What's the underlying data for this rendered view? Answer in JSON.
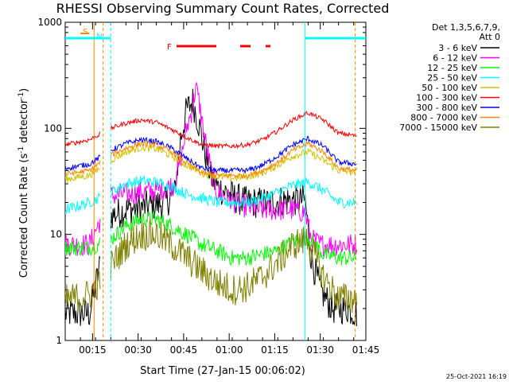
{
  "chart_data": {
    "type": "line",
    "title": "RHESSI Observing Summary Count Rates, Corrected",
    "xlabel": "Start Time (27-Jan-15 00:06:02)",
    "ylabel_main": "Corrected Count Rate (s",
    "ylabel_sup1": "-1",
    "ylabel_mid": " detector",
    "ylabel_sup2": "-1",
    "ylabel_end": ")",
    "x_unit": "minutes since 00:06:02",
    "xlim": [
      0,
      99
    ],
    "ylim": [
      1,
      1000
    ],
    "yscale": "log",
    "x_ticks": [
      {
        "x": 9,
        "label": "00:15"
      },
      {
        "x": 24,
        "label": "00:30"
      },
      {
        "x": 39,
        "label": "00:45"
      },
      {
        "x": 54,
        "label": "01:00"
      },
      {
        "x": 69,
        "label": "01:15"
      },
      {
        "x": 84,
        "label": "01:30"
      },
      {
        "x": 99,
        "label": "01:45"
      }
    ],
    "y_ticks": [
      {
        "y": 1,
        "label": "1"
      },
      {
        "y": 10,
        "label": "10"
      },
      {
        "y": 100,
        "label": "100"
      },
      {
        "y": 1000,
        "label": "1000"
      }
    ],
    "legend": {
      "placement": "right",
      "header1": "Det 1,3,5,6,7,9,",
      "header2": "Att 0"
    },
    "series": [
      {
        "name": "3 - 6 keV",
        "color": "#000000",
        "x": [
          0,
          8,
          15,
          20,
          25,
          30,
          33,
          36,
          38,
          40,
          42,
          44,
          46,
          48,
          50,
          53,
          56,
          60,
          64,
          68,
          72,
          76,
          79,
          81,
          84,
          88,
          93,
          96
        ],
        "y": [
          1.8,
          1.8,
          15,
          17,
          18,
          19,
          20,
          24,
          80,
          150,
          180,
          110,
          60,
          35,
          28,
          25,
          22,
          20,
          20,
          20,
          21,
          21,
          21,
          6,
          3,
          2,
          2,
          1.8
        ]
      },
      {
        "name": "6 - 12 keV",
        "color": "#ff00ff",
        "x": [
          0,
          8,
          15,
          20,
          25,
          30,
          33,
          36,
          38,
          40,
          42,
          43,
          44,
          46,
          48,
          50,
          53,
          56,
          60,
          64,
          68,
          72,
          76,
          79,
          81,
          84,
          88,
          93,
          96
        ],
        "y": [
          8,
          8,
          23,
          24,
          25,
          26,
          27,
          30,
          50,
          100,
          160,
          250,
          180,
          80,
          40,
          25,
          22,
          20,
          18,
          17,
          17,
          17,
          17,
          16,
          9,
          8,
          8,
          8,
          8
        ]
      },
      {
        "name": "12 - 25 keV",
        "color": "#00ff00",
        "x": [
          0,
          8,
          15,
          20,
          25,
          30,
          35,
          40,
          45,
          50,
          55,
          60,
          65,
          70,
          75,
          80,
          85,
          90,
          96
        ],
        "y": [
          7.5,
          7.5,
          9,
          12,
          14,
          14,
          12,
          10,
          8,
          7,
          6,
          6,
          6.5,
          7,
          8.5,
          9.5,
          6.5,
          6,
          6
        ]
      },
      {
        "name": "25 - 50 keV",
        "color": "#00ffff",
        "x": [
          0,
          8,
          15,
          20,
          25,
          30,
          35,
          40,
          45,
          50,
          55,
          60,
          65,
          70,
          75,
          80,
          85,
          90,
          96
        ],
        "y": [
          17,
          20,
          25,
          30,
          32,
          31,
          28,
          24,
          22,
          20,
          20,
          20,
          22,
          25,
          29,
          31,
          26,
          20,
          20
        ]
      },
      {
        "name": "50 - 100 keV",
        "color": "#d4c200",
        "x": [
          0,
          8,
          15,
          20,
          25,
          30,
          35,
          40,
          45,
          50,
          55,
          60,
          65,
          70,
          75,
          80,
          85,
          90,
          96
        ],
        "y": [
          33,
          36,
          50,
          60,
          66,
          64,
          55,
          45,
          38,
          35,
          34,
          35,
          38,
          45,
          55,
          60,
          50,
          40,
          38
        ]
      },
      {
        "name": "100 - 300 keV",
        "color": "#ff0000",
        "x": [
          0,
          8,
          15,
          20,
          25,
          30,
          35,
          40,
          45,
          50,
          55,
          60,
          65,
          70,
          75,
          80,
          85,
          90,
          96
        ],
        "y": [
          70,
          78,
          100,
          112,
          120,
          114,
          98,
          82,
          70,
          68,
          68,
          70,
          78,
          95,
          120,
          140,
          120,
          90,
          85
        ]
      },
      {
        "name": "300 - 800 keV",
        "color": "#0000ff",
        "x": [
          0,
          8,
          15,
          20,
          25,
          30,
          35,
          40,
          45,
          50,
          55,
          60,
          65,
          70,
          75,
          80,
          85,
          90,
          96
        ],
        "y": [
          42,
          46,
          62,
          72,
          78,
          75,
          65,
          52,
          42,
          40,
          40,
          40,
          45,
          55,
          70,
          80,
          68,
          48,
          46
        ]
      },
      {
        "name": "800 - 7000 keV",
        "color": "#ff8800",
        "x": [
          0,
          8,
          15,
          20,
          25,
          30,
          35,
          40,
          45,
          50,
          55,
          60,
          65,
          70,
          75,
          80,
          85,
          90,
          96
        ],
        "y": [
          37,
          40,
          56,
          65,
          72,
          70,
          60,
          47,
          38,
          36,
          36,
          36,
          40,
          48,
          62,
          72,
          60,
          42,
          40
        ]
      },
      {
        "name": "7000 - 15000 keV",
        "color": "#808000",
        "x": [
          0,
          8,
          15,
          20,
          25,
          30,
          35,
          40,
          45,
          50,
          55,
          60,
          65,
          70,
          75,
          80,
          85,
          90,
          96
        ],
        "y": [
          2.4,
          2.7,
          5,
          8,
          10,
          10,
          8,
          6,
          4.5,
          3.5,
          3,
          3.2,
          4,
          5.5,
          8,
          9,
          4,
          2.5,
          2.5
        ]
      }
    ],
    "flag_lines": [
      {
        "label": "S",
        "color": "#ff8800",
        "x_start": 5,
        "x_end": 8
      },
      {
        "label": "N",
        "color": "#00ffff",
        "x_start": 9.5,
        "x_end": 12
      }
    ],
    "flare_label": {
      "label": "F",
      "color": "#ff0000"
    }
  },
  "timestamp": "25-Oct-2021 16:19"
}
